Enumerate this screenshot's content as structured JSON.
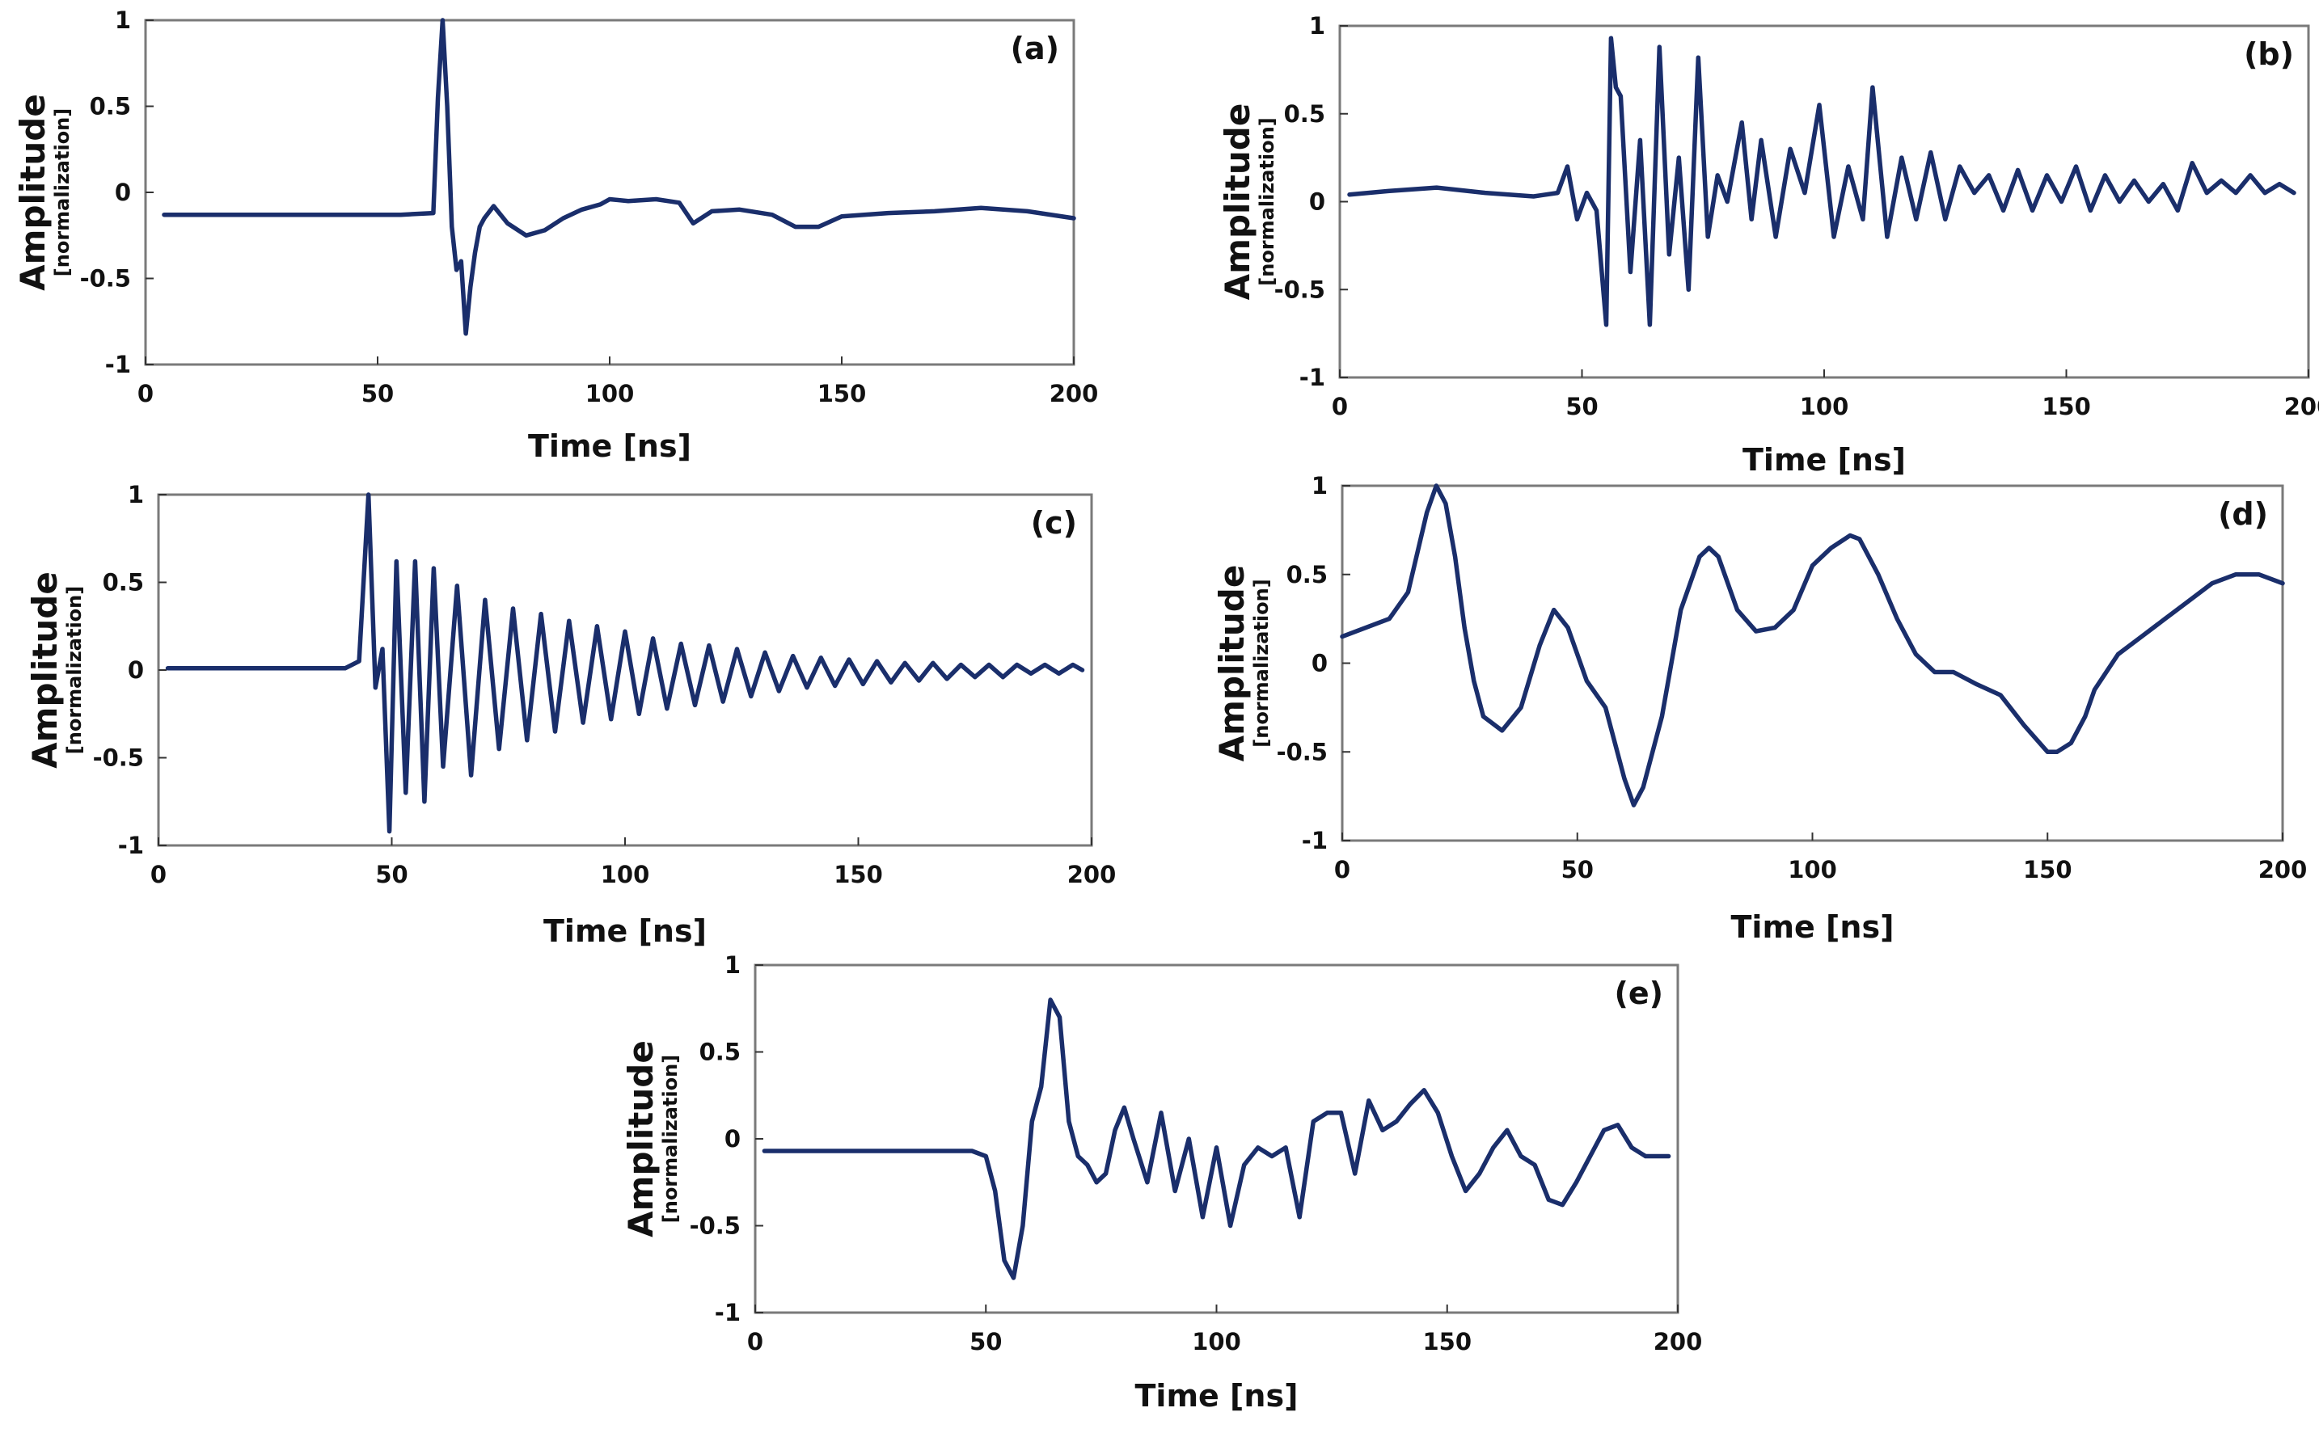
{
  "figure": {
    "line_color": "#1a2e6b",
    "panels": [
      {
        "id": "a",
        "panel_label": "(a)",
        "chart_data": {
          "type": "line",
          "xlabel": "Time [ns]",
          "ylabel": "Amplitude",
          "ylabel_sub": "[normalization]",
          "xlim": [
            0,
            200
          ],
          "ylim": [
            -1,
            1
          ],
          "xticks": [
            "0",
            "50",
            "100",
            "150",
            "200"
          ],
          "yticks": [
            "1",
            "0.5",
            "0",
            "-0.5",
            "-1"
          ],
          "series": [
            {
              "x": [
                4,
                20,
                40,
                55,
                62,
                63,
                64,
                65,
                66,
                67,
                68,
                69,
                70,
                71,
                72,
                73,
                75,
                78,
                82,
                86,
                90,
                94,
                98,
                100,
                104,
                110,
                115,
                118,
                122,
                128,
                135,
                140,
                145,
                150,
                160,
                170,
                180,
                190,
                200
              ],
              "y": [
                -0.13,
                -0.13,
                -0.13,
                -0.13,
                -0.12,
                0.55,
                1.0,
                0.5,
                -0.2,
                -0.45,
                -0.4,
                -0.82,
                -0.55,
                -0.35,
                -0.2,
                -0.15,
                -0.08,
                -0.18,
                -0.25,
                -0.22,
                -0.15,
                -0.1,
                -0.07,
                -0.04,
                -0.05,
                -0.04,
                -0.06,
                -0.18,
                -0.11,
                -0.1,
                -0.13,
                -0.2,
                -0.2,
                -0.14,
                -0.12,
                -0.11,
                -0.09,
                -0.11,
                -0.15
              ]
            }
          ]
        }
      },
      {
        "id": "b",
        "panel_label": "(b)",
        "chart_data": {
          "type": "line",
          "xlabel": "Time [ns]",
          "ylabel": "Amplitude",
          "ylabel_sub": "[normalization]",
          "xlim": [
            0,
            200
          ],
          "ylim": [
            -1,
            1
          ],
          "xticks": [
            "0",
            "50",
            "100",
            "150",
            "200"
          ],
          "yticks": [
            "1",
            "0.5",
            "0",
            "-0.5",
            "-1"
          ],
          "series": [
            {
              "x": [
                2,
                10,
                20,
                30,
                40,
                45,
                47,
                49,
                51,
                53,
                55,
                56,
                57,
                58,
                60,
                62,
                64,
                66,
                68,
                70,
                72,
                74,
                76,
                78,
                80,
                83,
                85,
                87,
                90,
                93,
                96,
                99,
                102,
                105,
                108,
                110,
                113,
                116,
                119,
                122,
                125,
                128,
                131,
                134,
                137,
                140,
                143,
                146,
                149,
                152,
                155,
                158,
                161,
                164,
                167,
                170,
                173,
                176,
                179,
                182,
                185,
                188,
                191,
                194,
                197
              ],
              "y": [
                0.04,
                0.06,
                0.08,
                0.05,
                0.03,
                0.05,
                0.2,
                -0.1,
                0.05,
                -0.05,
                -0.7,
                0.93,
                0.65,
                0.6,
                -0.4,
                0.35,
                -0.7,
                0.88,
                -0.3,
                0.25,
                -0.5,
                0.82,
                -0.2,
                0.15,
                0.0,
                0.45,
                -0.1,
                0.35,
                -0.2,
                0.3,
                0.05,
                0.55,
                -0.2,
                0.2,
                -0.1,
                0.65,
                -0.2,
                0.25,
                -0.1,
                0.28,
                -0.1,
                0.2,
                0.05,
                0.15,
                -0.05,
                0.18,
                -0.05,
                0.15,
                0.0,
                0.2,
                -0.05,
                0.15,
                0.0,
                0.12,
                0.0,
                0.1,
                -0.05,
                0.22,
                0.05,
                0.12,
                0.05,
                0.15,
                0.05,
                0.1,
                0.05
              ]
            }
          ]
        }
      },
      {
        "id": "c",
        "panel_label": "(c)",
        "chart_data": {
          "type": "line",
          "xlabel": "Time [ns]",
          "ylabel": "Amplitude",
          "ylabel_sub": "[normalization]",
          "xlim": [
            0,
            200
          ],
          "ylim": [
            -1,
            1
          ],
          "xticks": [
            "0",
            "50",
            "100",
            "150",
            "200"
          ],
          "yticks": [
            "1",
            "0.5",
            "0",
            "-0.5",
            "-1"
          ],
          "series": [
            {
              "x": [
                2,
                20,
                40,
                43,
                45,
                46.5,
                48,
                49.5,
                51,
                53,
                55,
                57,
                59,
                61,
                64,
                67,
                70,
                73,
                76,
                79,
                82,
                85,
                88,
                91,
                94,
                97,
                100,
                103,
                106,
                109,
                112,
                115,
                118,
                121,
                124,
                127,
                130,
                133,
                136,
                139,
                142,
                145,
                148,
                151,
                154,
                157,
                160,
                163,
                166,
                169,
                172,
                175,
                178,
                181,
                184,
                187,
                190,
                193,
                196,
                198
              ],
              "y": [
                0.01,
                0.01,
                0.01,
                0.05,
                1.0,
                -0.1,
                0.12,
                -0.92,
                0.62,
                -0.7,
                0.62,
                -0.75,
                0.58,
                -0.55,
                0.48,
                -0.6,
                0.4,
                -0.45,
                0.35,
                -0.4,
                0.32,
                -0.35,
                0.28,
                -0.3,
                0.25,
                -0.28,
                0.22,
                -0.25,
                0.18,
                -0.22,
                0.15,
                -0.2,
                0.14,
                -0.18,
                0.12,
                -0.15,
                0.1,
                -0.12,
                0.08,
                -0.1,
                0.07,
                -0.09,
                0.06,
                -0.08,
                0.05,
                -0.07,
                0.04,
                -0.06,
                0.04,
                -0.05,
                0.03,
                -0.04,
                0.03,
                -0.04,
                0.03,
                -0.02,
                0.03,
                -0.02,
                0.03,
                0.0
              ]
            }
          ]
        }
      },
      {
        "id": "d",
        "panel_label": "(d)",
        "chart_data": {
          "type": "line",
          "xlabel": "Time [ns]",
          "ylabel": "Amplitude",
          "ylabel_sub": "[normalization]",
          "xlim": [
            0,
            200
          ],
          "ylim": [
            -1,
            1
          ],
          "xticks": [
            "0",
            "50",
            "100",
            "150",
            "200"
          ],
          "yticks": [
            "1",
            "0.5",
            "0",
            "-0.5",
            "-1"
          ],
          "series": [
            {
              "x": [
                0,
                5,
                10,
                14,
                18,
                20,
                22,
                24,
                26,
                28,
                30,
                34,
                38,
                42,
                45,
                48,
                52,
                56,
                60,
                62,
                64,
                68,
                72,
                76,
                78,
                80,
                84,
                88,
                92,
                96,
                100,
                104,
                108,
                110,
                114,
                118,
                122,
                126,
                130,
                135,
                140,
                145,
                150,
                152,
                155,
                158,
                160,
                165,
                170,
                175,
                180,
                185,
                190,
                195,
                200
              ],
              "y": [
                0.15,
                0.2,
                0.25,
                0.4,
                0.85,
                1.0,
                0.9,
                0.6,
                0.2,
                -0.1,
                -0.3,
                -0.38,
                -0.25,
                0.1,
                0.3,
                0.2,
                -0.1,
                -0.25,
                -0.65,
                -0.8,
                -0.7,
                -0.3,
                0.3,
                0.6,
                0.65,
                0.6,
                0.3,
                0.18,
                0.2,
                0.3,
                0.55,
                0.65,
                0.72,
                0.7,
                0.5,
                0.25,
                0.05,
                -0.05,
                -0.05,
                -0.12,
                -0.18,
                -0.35,
                -0.5,
                -0.5,
                -0.45,
                -0.3,
                -0.15,
                0.05,
                0.15,
                0.25,
                0.35,
                0.45,
                0.5,
                0.5,
                0.45
              ]
            }
          ]
        }
      },
      {
        "id": "e",
        "panel_label": "(e)",
        "chart_data": {
          "type": "line",
          "xlabel": "Time [ns]",
          "ylabel": "Amplitude",
          "ylabel_sub": "[normalization]",
          "xlim": [
            0,
            200
          ],
          "ylim": [
            -1,
            1
          ],
          "xticks": [
            "0",
            "50",
            "100",
            "150",
            "200"
          ],
          "yticks": [
            "1",
            "0.5",
            "0",
            "-0.5",
            "-1"
          ],
          "series": [
            {
              "x": [
                2,
                20,
                40,
                47,
                50,
                52,
                54,
                56,
                58,
                60,
                62,
                64,
                66,
                68,
                70,
                72,
                74,
                76,
                78,
                80,
                82,
                85,
                88,
                91,
                94,
                97,
                100,
                103,
                106,
                109,
                112,
                115,
                118,
                121,
                124,
                127,
                130,
                133,
                136,
                139,
                142,
                145,
                148,
                151,
                154,
                157,
                160,
                163,
                166,
                169,
                172,
                175,
                178,
                181,
                184,
                187,
                190,
                193,
                196,
                198
              ],
              "y": [
                -0.07,
                -0.07,
                -0.07,
                -0.07,
                -0.1,
                -0.3,
                -0.7,
                -0.8,
                -0.5,
                0.1,
                0.3,
                0.8,
                0.7,
                0.1,
                -0.1,
                -0.15,
                -0.25,
                -0.2,
                0.05,
                0.18,
                0.0,
                -0.25,
                0.15,
                -0.3,
                0.0,
                -0.45,
                -0.05,
                -0.5,
                -0.15,
                -0.05,
                -0.1,
                -0.05,
                -0.45,
                0.1,
                0.15,
                0.15,
                -0.2,
                0.22,
                0.05,
                0.1,
                0.2,
                0.28,
                0.15,
                -0.1,
                -0.3,
                -0.2,
                -0.05,
                0.05,
                -0.1,
                -0.15,
                -0.35,
                -0.38,
                -0.25,
                -0.1,
                0.05,
                0.08,
                -0.05,
                -0.1,
                -0.1,
                -0.1
              ]
            }
          ]
        }
      }
    ]
  }
}
